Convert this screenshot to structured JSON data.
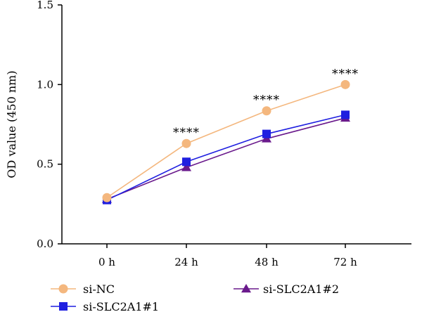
{
  "chart_data": {
    "type": "line",
    "title": "",
    "xlabel": "",
    "ylabel": "OD value (450 nm)",
    "categories": [
      "0 h",
      "24 h",
      "48 h",
      "72 h"
    ],
    "ylim": [
      0.0,
      1.5
    ],
    "yticks": [
      "0.0",
      "0.5",
      "1.0",
      "1.5"
    ],
    "grid": false,
    "legend_position": "bottom",
    "series": [
      {
        "name": "si-NC",
        "values": [
          0.29,
          0.63,
          0.835,
          1.0
        ],
        "color": "#F4B77E",
        "marker": "circle"
      },
      {
        "name": "si-SLC2A1#1",
        "values": [
          0.275,
          0.515,
          0.69,
          0.81
        ],
        "color": "#1F1FE0",
        "marker": "square"
      },
      {
        "name": "si-SLC2A1#2",
        "values": [
          0.28,
          0.48,
          0.66,
          0.79
        ],
        "color": "#6A1A8C",
        "marker": "triangle"
      }
    ],
    "annotations": [
      {
        "category": "24 h",
        "text": "****"
      },
      {
        "category": "48 h",
        "text": "****"
      },
      {
        "category": "72 h",
        "text": "****"
      }
    ]
  }
}
